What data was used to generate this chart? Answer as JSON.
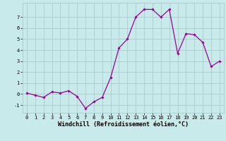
{
  "x": [
    0,
    1,
    2,
    3,
    4,
    5,
    6,
    7,
    8,
    9,
    10,
    11,
    12,
    13,
    14,
    15,
    16,
    17,
    18,
    19,
    20,
    21,
    22,
    23
  ],
  "y": [
    0.1,
    -0.1,
    -0.3,
    0.2,
    0.1,
    0.3,
    -0.2,
    -1.3,
    -0.7,
    -0.3,
    1.5,
    4.2,
    5.0,
    7.0,
    7.7,
    7.7,
    7.0,
    7.7,
    3.7,
    5.5,
    5.4,
    4.7,
    2.5,
    3.0
  ],
  "line_color": "#990099",
  "marker": "D",
  "marker_size": 1.8,
  "bg_color": "#c8eaea",
  "grid_color": "#aacccc",
  "xlabel": "Windchill (Refroidissement éolien,°C)",
  "xlim": [
    -0.5,
    23.5
  ],
  "ylim": [
    -1.7,
    8.3
  ],
  "xticks": [
    0,
    1,
    2,
    3,
    4,
    5,
    6,
    7,
    8,
    9,
    10,
    11,
    12,
    13,
    14,
    15,
    16,
    17,
    18,
    19,
    20,
    21,
    22,
    23
  ],
  "yticks": [
    -1,
    0,
    1,
    2,
    3,
    4,
    5,
    6,
    7
  ],
  "tick_fontsize": 5.0,
  "xlabel_fontsize": 6.0,
  "line_width": 0.9
}
